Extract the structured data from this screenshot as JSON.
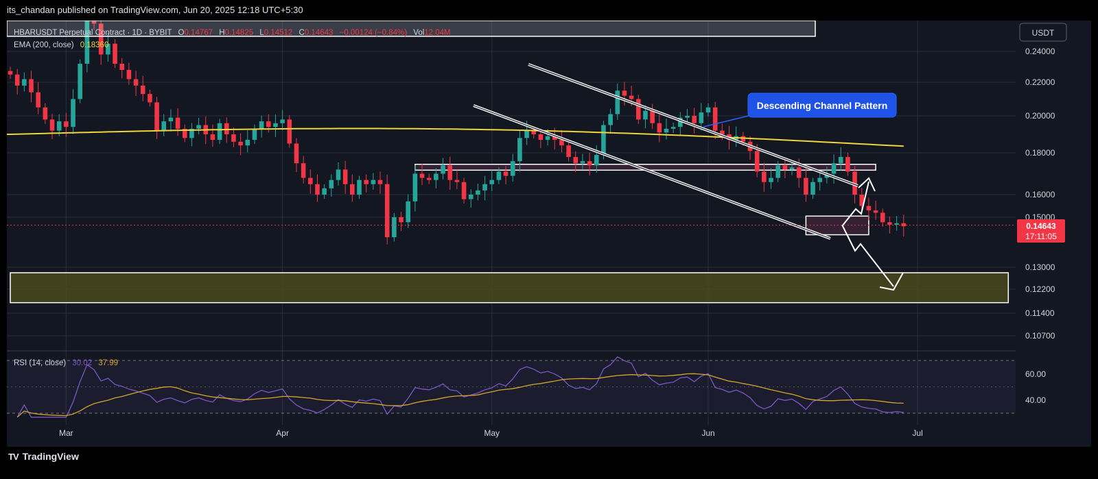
{
  "header": {
    "publisher": "its_chandan published on TradingView.com, Jun 20, 2025 12:18 UTC+5:30"
  },
  "legend": {
    "symbol": "HBARUSDT Perpetual Contract · 1D · BYBIT",
    "o_label": "O",
    "o": "0.14767",
    "h_label": "H",
    "h": "0.14825",
    "l_label": "L",
    "l": "0.14512",
    "c_label": "C",
    "c": "0.14643",
    "change": "−0.00124 (−0.84%)",
    "vol_label": "Vol",
    "vol": "12.04M",
    "ema_label": "EMA (200, close)",
    "ema_value": "0.18360",
    "rsi_label": "RSI (14, close)",
    "rsi_value": "30.02",
    "rsi_ma_value": "37.99"
  },
  "axis": {
    "currency": "USDT",
    "last_price": "0.14643",
    "countdown": "17:11:05"
  },
  "annotation": {
    "callout": "Descending Channel Pattern"
  },
  "branding": {
    "name": "TradingView"
  },
  "colors": {
    "up": "#26a69a",
    "down": "#f23645",
    "ema": "#f2d43b",
    "rsi": "#7e57c2",
    "rsi_ma": "#d4a72c",
    "callout": "#1e53e5"
  },
  "chart_data": {
    "type": "candlestick",
    "symbol": "HBARUSDT",
    "interval": "1D",
    "y_ticks": [
      0.24,
      0.22,
      0.2,
      0.18,
      0.16,
      0.15,
      0.13,
      0.122,
      0.114,
      0.107
    ],
    "y_tick_labels": [
      "0.24000",
      "0.22000",
      "0.20000",
      "0.18000",
      "0.16000",
      "0.15000",
      "0.13000",
      "0.12200",
      "0.11400",
      "0.10700"
    ],
    "x_ticks": [
      {
        "label": "Mar",
        "date": "2025-03-01"
      },
      {
        "label": "Apr",
        "date": "2025-04-01"
      },
      {
        "label": "May",
        "date": "2025-05-01"
      },
      {
        "label": "Jun",
        "date": "2025-06-01"
      },
      {
        "label": "Jul",
        "date": "2025-07-01"
      }
    ],
    "start_date": "2025-02-21",
    "closes": [
      0.225,
      0.218,
      0.222,
      0.214,
      0.205,
      0.198,
      0.192,
      0.197,
      0.194,
      0.21,
      0.232,
      0.265,
      0.258,
      0.238,
      0.245,
      0.232,
      0.228,
      0.222,
      0.218,
      0.213,
      0.208,
      0.192,
      0.197,
      0.199,
      0.193,
      0.188,
      0.193,
      0.195,
      0.19,
      0.187,
      0.196,
      0.19,
      0.186,
      0.184,
      0.187,
      0.193,
      0.197,
      0.194,
      0.196,
      0.198,
      0.185,
      0.175,
      0.168,
      0.165,
      0.16,
      0.163,
      0.167,
      0.172,
      0.165,
      0.16,
      0.167,
      0.165,
      0.167,
      0.165,
      0.142,
      0.15,
      0.148,
      0.157,
      0.17,
      0.168,
      0.167,
      0.17,
      0.174,
      0.167,
      0.166,
      0.158,
      0.16,
      0.162,
      0.165,
      0.167,
      0.171,
      0.169,
      0.176,
      0.188,
      0.192,
      0.19,
      0.187,
      0.189,
      0.187,
      0.184,
      0.178,
      0.175,
      0.176,
      0.174,
      0.179,
      0.195,
      0.201,
      0.215,
      0.212,
      0.21,
      0.198,
      0.203,
      0.196,
      0.191,
      0.193,
      0.194,
      0.199,
      0.2,
      0.196,
      0.202,
      0.205,
      0.192,
      0.19,
      0.187,
      0.189,
      0.186,
      0.181,
      0.171,
      0.166,
      0.168,
      0.174,
      0.172,
      0.173,
      0.168,
      0.16,
      0.166,
      0.168,
      0.17,
      0.175,
      0.178,
      0.171,
      0.16,
      0.155,
      0.153,
      0.152,
      0.148,
      0.147,
      0.1476,
      0.1464
    ],
    "ema_200": {
      "start": 0.19,
      "end": 0.1836
    },
    "zones": [
      {
        "name": "resistance",
        "y_top": 0.1745,
        "y_bottom": 0.1717,
        "from": "2025-04-20",
        "to": "2025-06-25"
      },
      {
        "name": "current",
        "y_top": 0.1505,
        "y_bottom": 0.143,
        "from": "2025-06-15",
        "to": "2025-06-24"
      },
      {
        "name": "support",
        "y_top": 0.128,
        "y_bottom": 0.1175,
        "from": "2025-02-21",
        "to": "2025-07-14"
      }
    ],
    "rsi": {
      "period": 14,
      "levels": [
        70,
        50,
        30
      ],
      "tick_labels": [
        "60.00",
        "40.00"
      ],
      "last": 30.02,
      "ma_last": 37.99
    }
  }
}
